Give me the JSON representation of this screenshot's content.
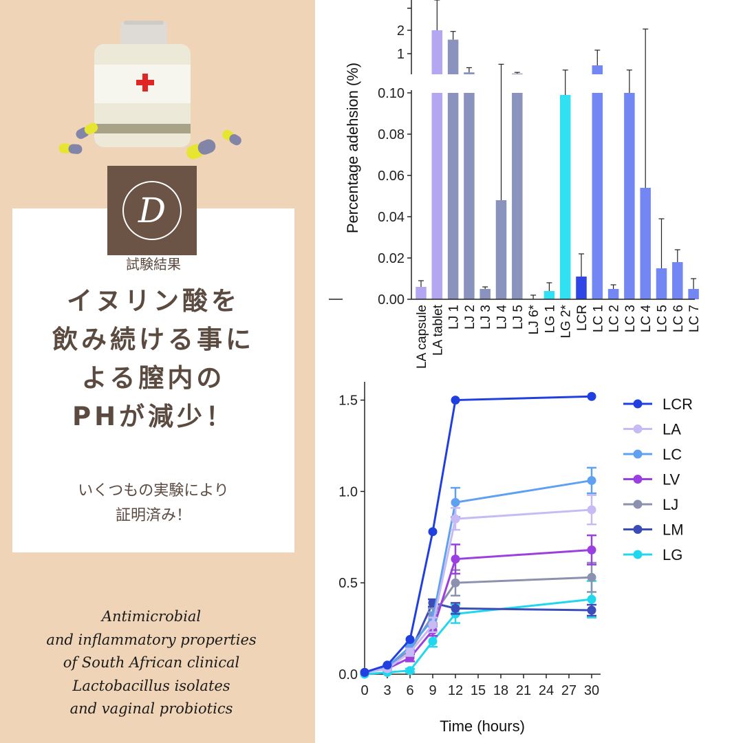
{
  "badge": {
    "letter": "D"
  },
  "subtitle": "試験結果",
  "headline": {
    "lines": [
      "イヌリン酸を",
      "飲み続ける事に",
      "よる膣内の",
      "PHが減少！"
    ]
  },
  "note": {
    "lines": [
      "いくつもの実験により",
      "証明済み！"
    ]
  },
  "citation": {
    "lines": [
      "Antimicrobial",
      "and inflammatory properties",
      "of South African clinical",
      "Lactobacillus isolates",
      "and vaginal probiotics"
    ]
  },
  "colors": {
    "panel_bg": "#efd4b7",
    "badge_bg": "#6b5446",
    "headline_text": "#5b4a40"
  },
  "icons": [
    "medicine-bottle-icon",
    "red-cross-icon",
    "capsule-icon"
  ],
  "chart_data": [
    {
      "type": "bar",
      "ylabel": "Percentage adehsion (%)",
      "y_ticks_lower": [
        "0.00",
        "0.02",
        "0.04",
        "0.06",
        "0.08",
        "0.10"
      ],
      "y_ticks_upper": [
        "1",
        "2"
      ],
      "ylim_lower": [
        0,
        0.1
      ],
      "ylim_upper": [
        0,
        3
      ],
      "axis_break": true,
      "categories": [
        "LA capsule",
        "LA tablet",
        "LJ 1",
        "LJ 2",
        "LJ 3",
        "LJ 4",
        "LJ 5",
        "LJ 6*",
        "LG 1",
        "LG 2*",
        "LCR",
        "LC 1",
        "LC 2",
        "LC 3",
        "LC 4",
        "LC 5",
        "LC 6",
        "LC 7"
      ],
      "values": [
        0.006,
        2.0,
        1.6,
        0.2,
        0.005,
        0.048,
        0.15,
        0.0,
        0.004,
        0.099,
        0.011,
        0.5,
        0.005,
        0.1,
        0.054,
        0.015,
        0.018,
        0.005
      ],
      "errors": [
        0.003,
        2.0,
        0.35,
        0.2,
        0.001,
        0.5,
        0.05,
        0.002,
        0.004,
        0.2,
        0.011,
        0.65,
        0.002,
        0.2,
        2.0,
        0.024,
        0.006,
        0.005
      ],
      "colors": [
        "#b4a6f0",
        "#b4a6f0",
        "#8a93bd",
        "#8a93bd",
        "#8a93bd",
        "#8a93bd",
        "#8a93bd",
        "#8a93bd",
        "#31e0f2",
        "#31e0f2",
        "#2f46e4",
        "#7387f4",
        "#7387f4",
        "#7387f4",
        "#7387f4",
        "#7387f4",
        "#7387f4",
        "#7387f4"
      ]
    },
    {
      "type": "line",
      "xlabel": "Time (hours)",
      "x_ticks": [
        0,
        3,
        6,
        9,
        12,
        15,
        18,
        21,
        24,
        27,
        30
      ],
      "y_ticks": [
        "0.0",
        "0.5",
        "1.0",
        "1.5"
      ],
      "xlim": [
        0,
        30
      ],
      "ylim": [
        0,
        1.6
      ],
      "legend_position": "top-right",
      "x": [
        0,
        3,
        6,
        9,
        12,
        30
      ],
      "series": [
        {
          "name": "LCR",
          "color": "#1f3fe0",
          "values": [
            0.01,
            0.05,
            0.19,
            0.78,
            1.5,
            1.52
          ],
          "errors": [
            0,
            0,
            0,
            0,
            0,
            0
          ]
        },
        {
          "name": "LA",
          "color": "#c8baf4",
          "values": [
            0.01,
            0.03,
            0.12,
            0.27,
            0.85,
            0.9
          ],
          "errors": [
            0,
            0.01,
            0.02,
            0.04,
            0.06,
            0.08
          ]
        },
        {
          "name": "LC",
          "color": "#5fa0f0",
          "values": [
            0.01,
            0.04,
            0.15,
            0.3,
            0.94,
            1.06
          ],
          "errors": [
            0,
            0.01,
            0.02,
            0.04,
            0.08,
            0.07
          ]
        },
        {
          "name": "LV",
          "color": "#9a3fe0",
          "values": [
            0.01,
            0.03,
            0.09,
            0.24,
            0.63,
            0.68
          ],
          "errors": [
            0,
            0.01,
            0.02,
            0.03,
            0.08,
            0.08
          ]
        },
        {
          "name": "LJ",
          "color": "#8b91ae",
          "values": [
            0.01,
            0.04,
            0.13,
            0.32,
            0.5,
            0.53
          ],
          "errors": [
            0,
            0.01,
            0.02,
            0.04,
            0.07,
            0.08
          ]
        },
        {
          "name": "LM",
          "color": "#3b4cb8",
          "values": [
            0.01,
            0.04,
            0.12,
            0.39,
            0.36,
            0.35
          ],
          "errors": [
            0,
            0.01,
            0.02,
            0.02,
            0.03,
            0.03
          ]
        },
        {
          "name": "LG",
          "color": "#21d7ee",
          "values": [
            0.0,
            0.01,
            0.02,
            0.18,
            0.33,
            0.41
          ],
          "errors": [
            0,
            0.005,
            0.01,
            0.03,
            0.05,
            0.1
          ]
        }
      ]
    }
  ]
}
